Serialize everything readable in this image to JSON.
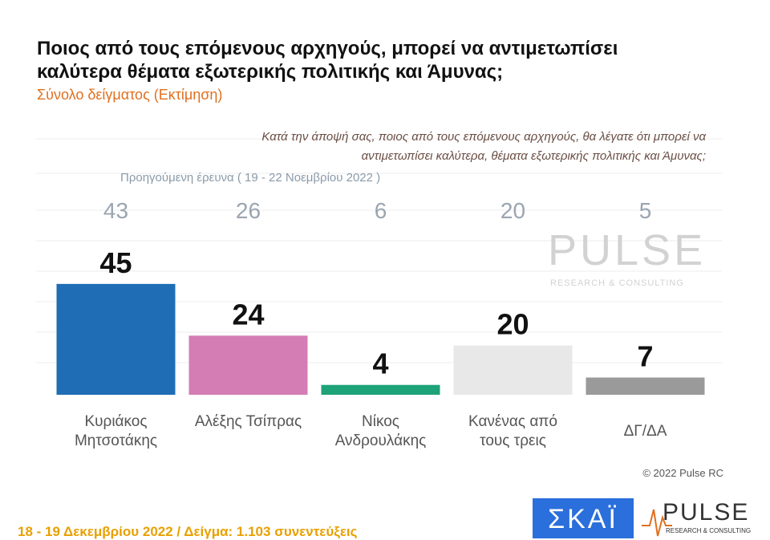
{
  "chart_data": {
    "type": "bar",
    "title_lines": [
      "Ποιος από τους επόμενους αρχηγούς, μπορεί να αντιμετωπίσει",
      "καλύτερα θέματα εξωτερικής πολιτικής και Άμυνας;"
    ],
    "subtitle": "Σύνολο δείγματος  (Εκτίμηση)",
    "question_lines": [
      "Κατά την άποψή σας, ποιος  από τους επόμενους αρχηγούς, θα λέγατε ότι μπορεί να",
      "αντιμετωπίσει καλύτερα, θέματα εξωτερικής πολιτικής και Άμυνας;"
    ],
    "previous_label": "Προηγούμενη έρευνα  ( 19 - 22 Νοεμβρίου  2022 )",
    "categories": [
      "Κυριάκος Μητσοτάκης",
      "Αλέξης Τσίπρας",
      "Νίκος Ανδρουλάκης",
      "Κανένας από τους τρεις",
      "ΔΓ/ΔΑ"
    ],
    "values": [
      45,
      24,
      4,
      20,
      7
    ],
    "previous_values": [
      43,
      26,
      6,
      20,
      5
    ],
    "colors": [
      "#1f6db5",
      "#d47db4",
      "#1ea277",
      "#e8e8e8",
      "#9a9a9a"
    ],
    "copyright": "© 2022 Pulse RC",
    "footer": "18 - 19  Δεκεμβρίου  2022  /  Δείγμα:  1.103 συνεντεύξεις",
    "logo_skai": "ΣΚΑΪ",
    "logo_pulse": "PULSE",
    "logo_pulse_sub": "RESEARCH & CONSULTING"
  }
}
